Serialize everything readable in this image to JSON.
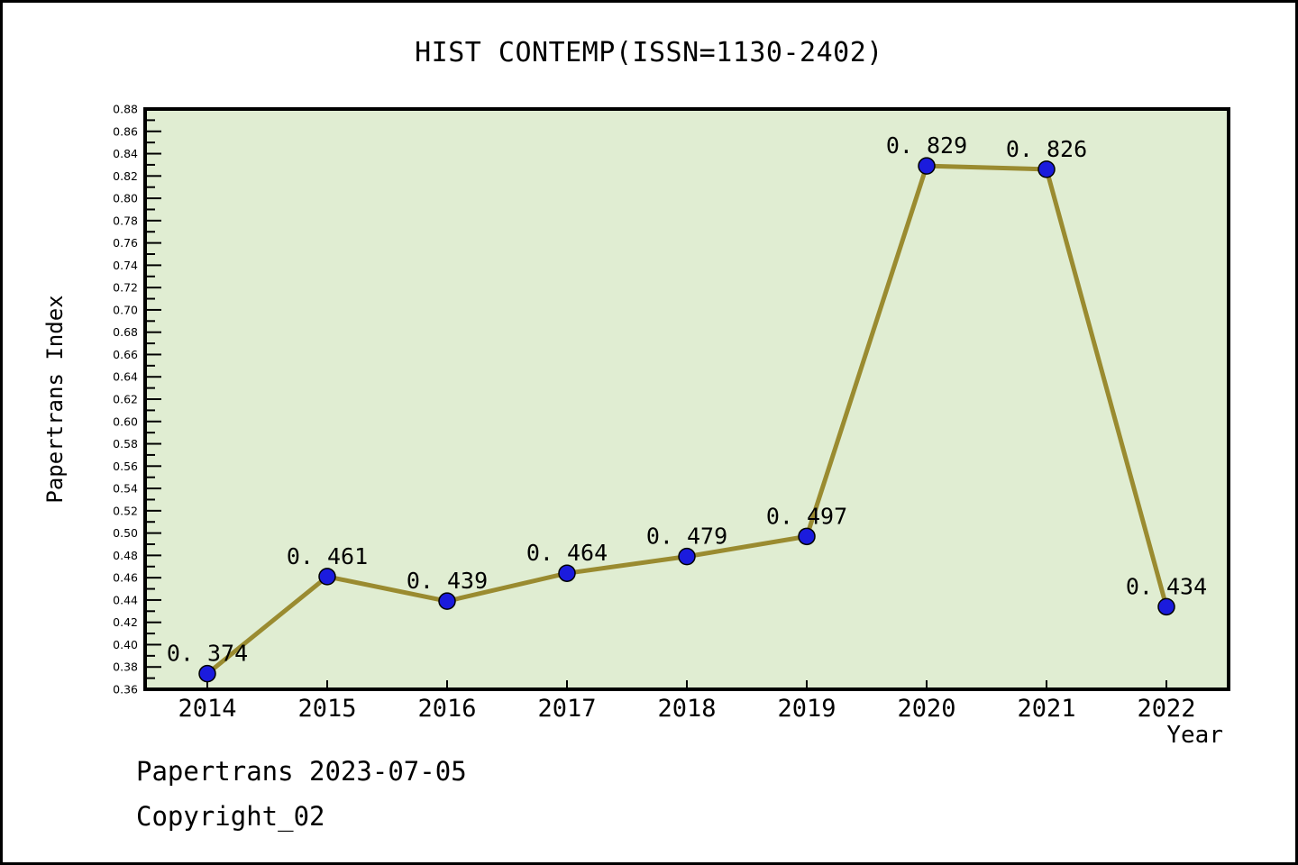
{
  "page": {
    "footer_line1": "Papertrans 2023-07-05",
    "footer_line2": "Copyright_02"
  },
  "chart_data": {
    "type": "line",
    "title": "HIST CONTEMP(ISSN=1130-2402)",
    "xlabel": "Year",
    "ylabel": "Papertrans Index",
    "categories": [
      "2014",
      "2015",
      "2016",
      "2017",
      "2018",
      "2019",
      "2020",
      "2021",
      "2022"
    ],
    "series": [
      {
        "name": "Papertrans Index",
        "values": [
          0.374,
          0.461,
          0.439,
          0.464,
          0.479,
          0.497,
          0.829,
          0.826,
          0.434
        ],
        "point_labels": [
          "0. 374",
          "0. 461",
          "0. 439",
          "0. 464",
          "0. 479",
          "0. 497",
          "0. 829",
          "0. 826",
          "0. 434"
        ]
      }
    ],
    "ylim": [
      0.36,
      0.88
    ],
    "ytick_major_step": 0.02,
    "ytick_minor_step": 0.01,
    "grid": false,
    "legend_position": "none",
    "colors": {
      "plot_bg": "#e0edd2",
      "line": "#9a8b30",
      "marker_fill": "#1b1bdd",
      "marker_edge": "#000000",
      "axis": "#000000",
      "text": "#000000"
    }
  }
}
